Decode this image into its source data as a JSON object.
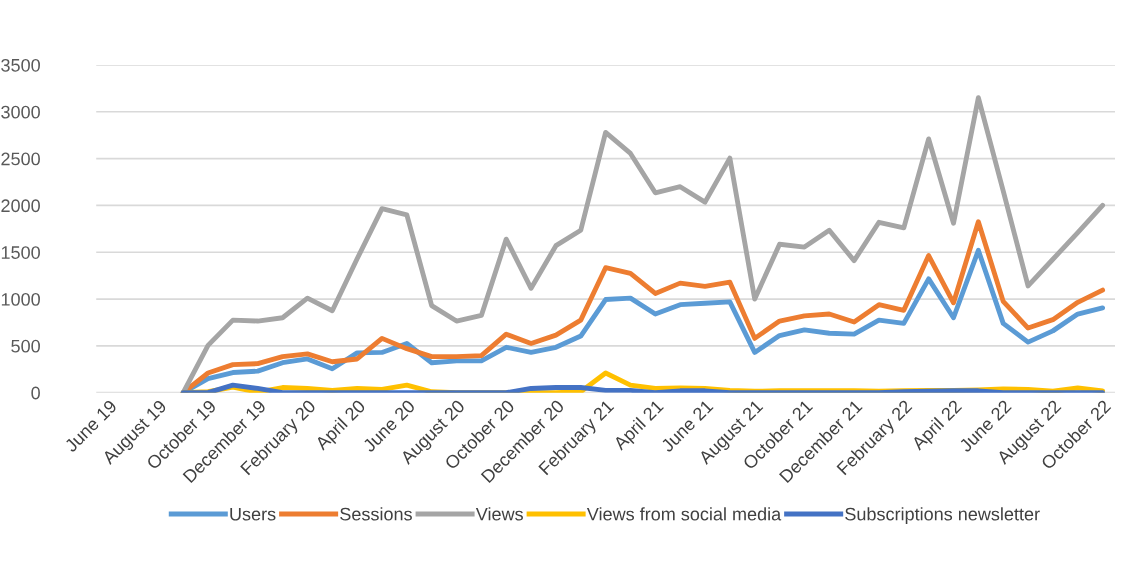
{
  "chart_data": {
    "type": "line",
    "categories": [
      "June 19",
      null,
      "August 19",
      null,
      "October 19",
      null,
      "December 19",
      null,
      "February 20",
      null,
      "April 20",
      null,
      "June 20",
      null,
      "August 20",
      null,
      "October 20",
      null,
      "December 20",
      null,
      "February 21",
      null,
      "April 21",
      null,
      "June 21",
      null,
      "August 21",
      null,
      "October 21",
      null,
      "December 21",
      null,
      "February 22",
      null,
      "April 22",
      null,
      "June 22",
      null,
      "August 22",
      null,
      "October 22"
    ],
    "series": [
      {
        "name": "Users",
        "color": "#5b9bd5",
        "values": [
          null,
          null,
          null,
          0,
          150,
          215,
          230,
          320,
          360,
          255,
          425,
          430,
          525,
          320,
          340,
          340,
          485,
          430,
          485,
          605,
          995,
          1010,
          840,
          940,
          955,
          970,
          430,
          610,
          670,
          635,
          625,
          775,
          740,
          1215,
          800,
          1520,
          740,
          540,
          660,
          840,
          905
        ]
      },
      {
        "name": "Sessions",
        "color": "#ed7d31",
        "values": [
          null,
          null,
          null,
          0,
          210,
          300,
          310,
          385,
          415,
          330,
          360,
          580,
          470,
          385,
          385,
          395,
          625,
          525,
          615,
          775,
          1335,
          1275,
          1060,
          1170,
          1135,
          1180,
          580,
          765,
          820,
          840,
          755,
          940,
          880,
          1465,
          960,
          1825,
          975,
          690,
          780,
          965,
          1095
        ]
      },
      {
        "name": "Views",
        "color": "#a5a5a5",
        "values": [
          null,
          null,
          null,
          0,
          505,
          775,
          765,
          800,
          1010,
          875,
          1430,
          1965,
          1900,
          930,
          765,
          825,
          1640,
          1115,
          1570,
          1735,
          2780,
          2555,
          2135,
          2200,
          2035,
          2505,
          1000,
          1585,
          1555,
          1735,
          1410,
          1820,
          1760,
          2710,
          1810,
          3150,
          2155,
          1140,
          1425,
          1710,
          2000
        ]
      },
      {
        "name": "Views from social media",
        "color": "#ffc000",
        "values": [
          null,
          null,
          null,
          0,
          10,
          60,
          5,
          55,
          45,
          25,
          45,
          35,
          80,
          10,
          0,
          0,
          0,
          0,
          0,
          10,
          210,
          80,
          45,
          50,
          45,
          25,
          15,
          20,
          20,
          20,
          20,
          15,
          20,
          25,
          25,
          30,
          40,
          35,
          15,
          50,
          20
        ]
      },
      {
        "name": "Subscriptions newsletter",
        "color": "#4472c4",
        "values": [
          null,
          null,
          null,
          0,
          0,
          80,
          45,
          0,
          0,
          0,
          0,
          0,
          0,
          0,
          0,
          0,
          0,
          45,
          55,
          55,
          25,
          25,
          0,
          20,
          20,
          0,
          0,
          0,
          0,
          0,
          0,
          0,
          10,
          15,
          20,
          20,
          0,
          0,
          0,
          0,
          0
        ]
      }
    ],
    "ylim": [
      0,
      3500
    ],
    "yticks": [
      0,
      500,
      1000,
      1500,
      2000,
      2500,
      3000,
      3500
    ],
    "grid": "y",
    "legend": "bottom",
    "line_style": "solid",
    "marker": "none"
  }
}
